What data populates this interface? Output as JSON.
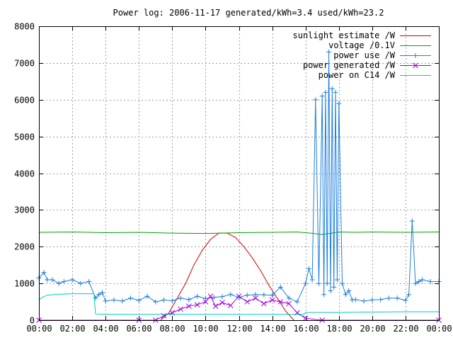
{
  "chart_data": {
    "type": "line",
    "title": "Power log: 2006-11-17 generated/kWh=3.4 used/kWh=23.2",
    "xlabel": "",
    "ylabel": "",
    "x_ticks": [
      "00:00",
      "02:00",
      "04:00",
      "06:00",
      "08:00",
      "10:00",
      "12:00",
      "14:00",
      "16:00",
      "18:00",
      "20:00",
      "22:00",
      "00:00"
    ],
    "xlim_hours": [
      0,
      24
    ],
    "ylim": [
      0,
      8000
    ],
    "y_ticks": [
      0,
      1000,
      2000,
      3000,
      4000,
      5000,
      6000,
      7000,
      8000
    ],
    "grid": true,
    "legend_position": "top-right",
    "series": [
      {
        "name": "sunlight estimate /W",
        "color": "#d00000",
        "marker": "none",
        "x": [
          7.3,
          7.8,
          8.3,
          8.8,
          9.3,
          9.8,
          10.3,
          10.8,
          11.3,
          11.8,
          12.3,
          12.8,
          13.3,
          13.8,
          14.3,
          14.8,
          15.3
        ],
        "y": [
          0,
          200,
          600,
          1000,
          1500,
          1900,
          2200,
          2370,
          2370,
          2250,
          2000,
          1700,
          1350,
          950,
          600,
          250,
          0
        ]
      },
      {
        "name": "voltage /0.1V",
        "color": "#00a000",
        "marker": "none",
        "x": [
          0,
          2,
          4,
          6,
          8,
          10,
          12,
          14,
          15.5,
          16.5,
          17,
          18,
          19,
          20,
          22,
          24
        ],
        "y": [
          2390,
          2400,
          2380,
          2390,
          2370,
          2360,
          2380,
          2390,
          2400,
          2360,
          2330,
          2400,
          2390,
          2400,
          2390,
          2400
        ]
      },
      {
        "name": "power use /W",
        "color": "#1e7fdc",
        "marker": "plus",
        "x": [
          0,
          0.3,
          0.5,
          0.8,
          1.2,
          1.5,
          2,
          2.5,
          3,
          3.4,
          3.6,
          3.8,
          4,
          4.5,
          5,
          5.5,
          6,
          6.5,
          7,
          7.5,
          8,
          8.5,
          9,
          9.5,
          10,
          10.5,
          11,
          11.5,
          12,
          12.5,
          13,
          13.5,
          14,
          14.5,
          15,
          15.5,
          16,
          16.2,
          16.4,
          16.6,
          16.8,
          17,
          17.1,
          17.2,
          17.3,
          17.4,
          17.5,
          17.6,
          17.7,
          17.8,
          17.9,
          18,
          18.2,
          18.4,
          18.6,
          18.8,
          19,
          19.5,
          20,
          20.5,
          21,
          21.5,
          22,
          22.2,
          22.4,
          22.6,
          22.8,
          23,
          23.5,
          24
        ],
        "y": [
          1150,
          1300,
          1100,
          1100,
          1000,
          1050,
          1100,
          1000,
          1050,
          600,
          700,
          750,
          520,
          550,
          520,
          600,
          540,
          650,
          500,
          550,
          530,
          600,
          560,
          650,
          590,
          620,
          640,
          700,
          620,
          680,
          700,
          690,
          680,
          900,
          600,
          500,
          1000,
          1400,
          1100,
          6000,
          1000,
          6100,
          700,
          6200,
          1000,
          7300,
          800,
          6300,
          900,
          6200,
          1100,
          5900,
          1000,
          700,
          800,
          550,
          560,
          520,
          550,
          560,
          600,
          600,
          540,
          700,
          2700,
          1000,
          1050,
          1100,
          1050,
          1050
        ]
      },
      {
        "name": "power generated /W",
        "color": "#a000e0",
        "marker": "x",
        "x": [
          0,
          6,
          7,
          7.5,
          8,
          8.5,
          9,
          9.5,
          10,
          10.3,
          10.6,
          11,
          11.5,
          12,
          12.5,
          13,
          13.5,
          14,
          14.5,
          15,
          15.5,
          16,
          17,
          24
        ],
        "y": [
          0,
          0,
          0,
          120,
          200,
          300,
          380,
          420,
          500,
          650,
          380,
          480,
          400,
          650,
          500,
          600,
          450,
          550,
          500,
          450,
          200,
          50,
          0,
          0
        ]
      },
      {
        "name": "power on C14 /W",
        "color": "#00c8c8",
        "marker": "none",
        "x": [
          0,
          0.2,
          0.5,
          1,
          2,
          3.3,
          3.4,
          4,
          6,
          7,
          8,
          10,
          12,
          14,
          15.9,
          16,
          18,
          20,
          22,
          24
        ],
        "y": [
          550,
          620,
          680,
          700,
          720,
          720,
          170,
          160,
          160,
          160,
          160,
          160,
          160,
          160,
          160,
          210,
          210,
          220,
          230,
          230
        ]
      }
    ]
  }
}
